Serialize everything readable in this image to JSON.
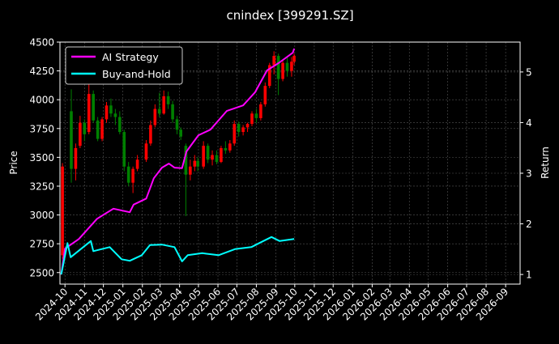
{
  "chart_data": {
    "type": "candlestick+line",
    "title": "cnindex [399291.SZ]",
    "ylabel_left": "Price",
    "ylabel_right": "Return",
    "xlim": [
      "2024-09-23",
      "2026-09-24"
    ],
    "ylim_left": [
      2400,
      4500
    ],
    "ylim_right": [
      0.81,
      5.59
    ],
    "yticks_left": [
      2500,
      2750,
      3000,
      3250,
      3500,
      3750,
      4000,
      4250,
      4500
    ],
    "yticks_right": [
      1,
      2,
      3,
      4,
      5
    ],
    "xticks": [
      "2024-10",
      "2024-11",
      "2024-12",
      "2025-01",
      "2025-02",
      "2025-03",
      "2025-04",
      "2025-05",
      "2025-06",
      "2025-07",
      "2025-08",
      "2025-09",
      "2025-10",
      "2025-11",
      "2025-12",
      "2026-01",
      "2026-02",
      "2026-03",
      "2026-04",
      "2026-05",
      "2026-06",
      "2026-07",
      "2026-08",
      "2026-09"
    ],
    "grid": true,
    "legend_position": "upper-left",
    "colors": {
      "background": "#000000",
      "up": "#ff0000",
      "down": "#008000",
      "ai": "#ff00ff",
      "bh": "#00ffff",
      "grid": "#555555"
    },
    "candles_columns": [
      "date",
      "open",
      "high",
      "low",
      "close"
    ],
    "candles": [
      [
        "2024-09-27",
        2650,
        3450,
        2620,
        3420
      ],
      [
        "2024-10-11",
        3900,
        4090,
        3280,
        3400
      ],
      [
        "2024-10-18",
        3400,
        3620,
        3300,
        3580
      ],
      [
        "2024-10-25",
        3600,
        3860,
        3580,
        3800
      ],
      [
        "2024-11-01",
        3800,
        3830,
        3640,
        3700
      ],
      [
        "2024-11-08",
        3720,
        4150,
        3700,
        4050
      ],
      [
        "2024-11-15",
        4050,
        4080,
        3800,
        3820
      ],
      [
        "2024-11-22",
        3820,
        3850,
        3640,
        3660
      ],
      [
        "2024-11-29",
        3660,
        3850,
        3640,
        3830
      ],
      [
        "2024-12-06",
        3830,
        3980,
        3800,
        3950
      ],
      [
        "2024-12-13",
        3950,
        4010,
        3850,
        3880
      ],
      [
        "2024-12-20",
        3880,
        3920,
        3780,
        3850
      ],
      [
        "2024-12-27",
        3850,
        3900,
        3700,
        3720
      ],
      [
        "2025-01-03",
        3720,
        3740,
        3380,
        3420
      ],
      [
        "2025-01-10",
        3420,
        3460,
        3250,
        3280
      ],
      [
        "2025-01-17",
        3280,
        3420,
        3190,
        3400
      ],
      [
        "2025-01-24",
        3400,
        3520,
        3380,
        3480
      ],
      [
        "2025-02-07",
        3480,
        3650,
        3460,
        3620
      ],
      [
        "2025-02-14",
        3620,
        3820,
        3600,
        3780
      ],
      [
        "2025-02-21",
        3780,
        3960,
        3760,
        3920
      ],
      [
        "2025-02-28",
        3920,
        4060,
        3850,
        3880
      ],
      [
        "2025-03-07",
        3880,
        4080,
        3870,
        4030
      ],
      [
        "2025-03-14",
        4030,
        4070,
        3920,
        3960
      ],
      [
        "2025-03-21",
        3960,
        3990,
        3800,
        3830
      ],
      [
        "2025-03-28",
        3830,
        3860,
        3700,
        3740
      ],
      [
        "2025-04-03",
        3740,
        3760,
        3650,
        3680
      ],
      [
        "2025-04-11",
        3600,
        3620,
        2990,
        3350
      ],
      [
        "2025-04-18",
        3350,
        3480,
        3300,
        3420
      ],
      [
        "2025-04-25",
        3420,
        3520,
        3380,
        3470
      ],
      [
        "2025-04-30",
        3470,
        3500,
        3380,
        3420
      ],
      [
        "2025-05-09",
        3420,
        3640,
        3400,
        3600
      ],
      [
        "2025-05-16",
        3600,
        3620,
        3450,
        3480
      ],
      [
        "2025-05-23",
        3480,
        3560,
        3430,
        3520
      ],
      [
        "2025-05-30",
        3520,
        3560,
        3440,
        3460
      ],
      [
        "2025-06-06",
        3460,
        3600,
        3450,
        3580
      ],
      [
        "2025-06-13",
        3580,
        3640,
        3530,
        3560
      ],
      [
        "2025-06-20",
        3560,
        3650,
        3540,
        3620
      ],
      [
        "2025-06-27",
        3620,
        3820,
        3600,
        3790
      ],
      [
        "2025-07-04",
        3790,
        3810,
        3680,
        3720
      ],
      [
        "2025-07-11",
        3720,
        3780,
        3690,
        3760
      ],
      [
        "2025-07-18",
        3760,
        3800,
        3720,
        3790
      ],
      [
        "2025-07-25",
        3790,
        3900,
        3770,
        3880
      ],
      [
        "2025-08-01",
        3880,
        3920,
        3800,
        3840
      ],
      [
        "2025-08-08",
        3840,
        3980,
        3820,
        3960
      ],
      [
        "2025-08-15",
        3960,
        4150,
        3940,
        4120
      ],
      [
        "2025-08-22",
        4120,
        4320,
        4100,
        4300
      ],
      [
        "2025-08-29",
        4300,
        4420,
        4220,
        4380
      ],
      [
        "2025-09-05",
        4380,
        4400,
        4040,
        4180
      ],
      [
        "2025-09-12",
        4180,
        4350,
        4160,
        4320
      ],
      [
        "2025-09-19",
        4320,
        4380,
        4200,
        4250
      ],
      [
        "2025-09-26",
        4250,
        4370,
        4200,
        4330
      ],
      [
        "2025-09-30",
        4330,
        4400,
        4300,
        4380
      ]
    ],
    "series": [
      {
        "name": "AI Strategy",
        "axis": "right",
        "points": [
          [
            "2024-09-25",
            1.0
          ],
          [
            "2024-10-01",
            1.51
          ],
          [
            "2024-10-23",
            1.7
          ],
          [
            "2024-11-21",
            2.1
          ],
          [
            "2024-12-17",
            2.3
          ],
          [
            "2025-01-12",
            2.23
          ],
          [
            "2025-01-18",
            2.38
          ],
          [
            "2025-02-07",
            2.5
          ],
          [
            "2025-02-19",
            2.9
          ],
          [
            "2025-03-04",
            3.11
          ],
          [
            "2025-03-15",
            3.19
          ],
          [
            "2025-03-24",
            3.11
          ],
          [
            "2025-04-05",
            3.1
          ],
          [
            "2025-04-12",
            3.43
          ],
          [
            "2025-05-01",
            3.75
          ],
          [
            "2025-05-20",
            3.86
          ],
          [
            "2025-06-15",
            4.23
          ],
          [
            "2025-07-11",
            4.34
          ],
          [
            "2025-07-30",
            4.6
          ],
          [
            "2025-08-18",
            5.03
          ],
          [
            "2025-09-07",
            5.19
          ],
          [
            "2025-09-28",
            5.38
          ],
          [
            "2025-09-30",
            5.46
          ]
        ]
      },
      {
        "name": "Buy-and-Hold",
        "axis": "right",
        "points": [
          [
            "2024-09-25",
            1.0
          ],
          [
            "2024-10-05",
            1.62
          ],
          [
            "2024-10-10",
            1.34
          ],
          [
            "2024-10-27",
            1.51
          ],
          [
            "2024-11-11",
            1.66
          ],
          [
            "2024-11-15",
            1.46
          ],
          [
            "2024-12-11",
            1.54
          ],
          [
            "2024-12-30",
            1.3
          ],
          [
            "2025-01-12",
            1.27
          ],
          [
            "2025-01-31",
            1.38
          ],
          [
            "2025-02-13",
            1.58
          ],
          [
            "2025-03-04",
            1.59
          ],
          [
            "2025-03-24",
            1.54
          ],
          [
            "2025-04-05",
            1.26
          ],
          [
            "2025-04-14",
            1.38
          ],
          [
            "2025-05-07",
            1.42
          ],
          [
            "2025-06-02",
            1.38
          ],
          [
            "2025-06-28",
            1.5
          ],
          [
            "2025-07-24",
            1.54
          ],
          [
            "2025-08-12",
            1.66
          ],
          [
            "2025-08-25",
            1.74
          ],
          [
            "2025-09-07",
            1.66
          ],
          [
            "2025-09-30",
            1.7
          ]
        ]
      }
    ]
  }
}
